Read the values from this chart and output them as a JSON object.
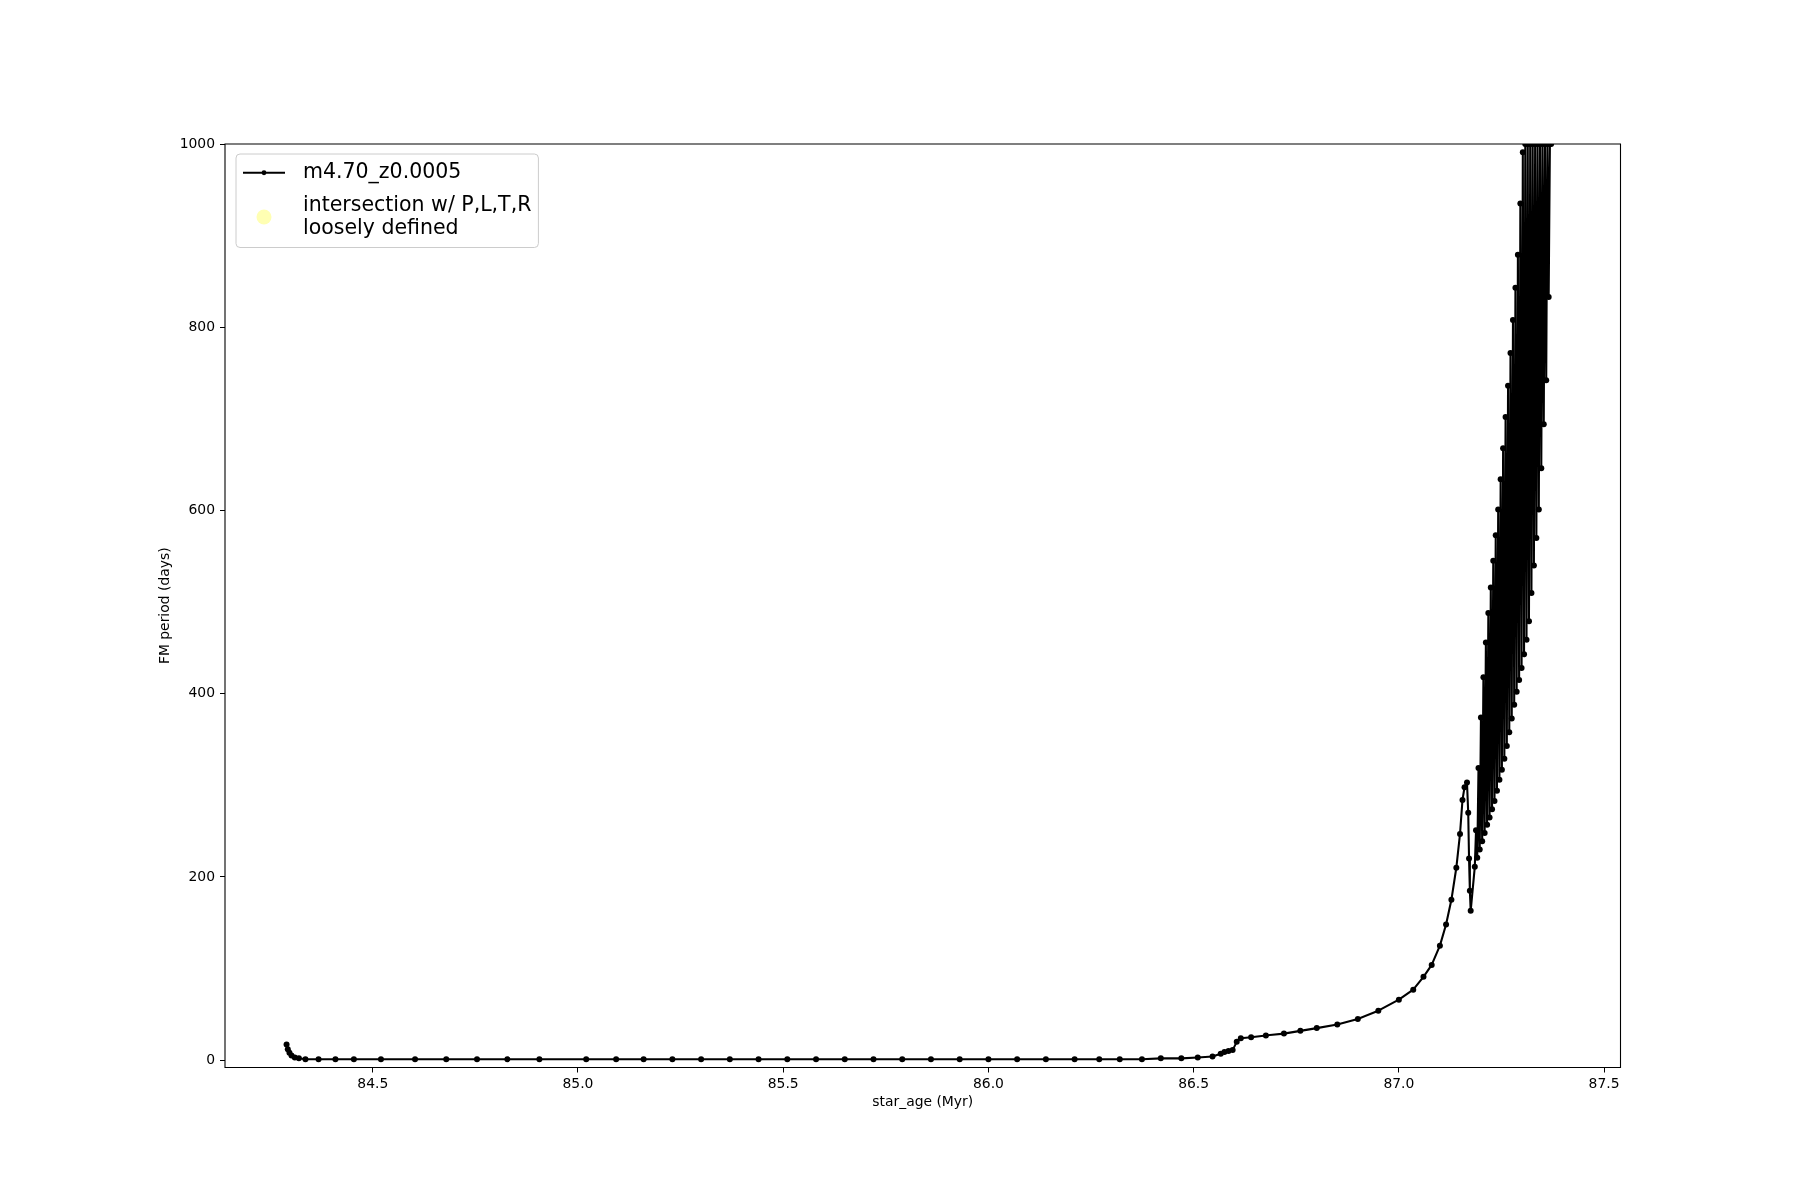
{
  "chart_data": {
    "type": "line",
    "xlabel": "star_age (Myr)",
    "ylabel": "FM period (days)",
    "xlim": [
      84.14,
      87.54
    ],
    "ylim": [
      -8,
      1000
    ],
    "xticks": [
      84.5,
      {
        "value": 85,
        "label": "85.0"
      },
      85.5,
      {
        "value": 86,
        "label": "86.0"
      },
      86.5,
      {
        "value": 87,
        "label": "87.0"
      },
      87.5
    ],
    "yticks": [
      0,
      200,
      400,
      600,
      800,
      1000
    ],
    "legend": "top left",
    "marker": "circle",
    "line_style": "solid",
    "series": [
      {
        "name": "m4.70_z0.0005",
        "color": "#000000",
        "x": [
          84.29,
          84.293,
          84.297,
          84.302,
          84.31,
          84.32,
          84.336,
          84.368,
          84.409,
          84.454,
          84.52,
          84.603,
          84.679,
          84.754,
          84.828,
          84.906,
          85.02,
          85.093,
          85.16,
          85.23,
          85.3,
          85.37,
          85.44,
          85.51,
          85.58,
          85.65,
          85.72,
          85.79,
          85.86,
          85.93,
          86.0,
          86.07,
          86.14,
          86.21,
          86.27,
          86.32,
          86.374,
          86.42,
          86.47,
          86.51,
          86.546,
          86.566,
          86.575,
          86.585,
          86.595,
          86.605,
          86.615,
          86.64,
          86.676,
          86.72,
          86.76,
          86.8,
          86.85,
          86.9,
          86.95,
          87.0,
          87.035,
          87.06,
          87.08,
          87.1,
          87.115,
          87.128,
          87.14,
          87.149,
          87.155,
          87.16,
          87.166,
          87.169,
          87.171,
          87.173,
          87.175,
          87.185,
          87.188,
          87.191,
          87.194,
          87.197,
          87.2,
          87.203,
          87.206,
          87.209,
          87.212,
          87.215,
          87.218,
          87.221,
          87.224,
          87.227,
          87.23,
          87.233,
          87.236,
          87.239,
          87.242,
          87.245,
          87.248,
          87.251,
          87.254,
          87.257,
          87.26,
          87.263,
          87.266,
          87.269,
          87.272,
          87.275,
          87.278,
          87.281,
          87.284,
          87.287,
          87.29,
          87.293,
          87.296,
          87.299,
          87.302,
          87.305,
          87.308,
          87.311,
          87.314,
          87.317,
          87.32,
          87.323,
          87.326,
          87.329,
          87.332,
          87.335,
          87.338,
          87.341,
          87.344,
          87.347,
          87.35,
          87.353,
          87.356,
          87.359,
          87.362,
          87.365,
          87.368,
          87.371
        ],
        "values": [
          17,
          12,
          8,
          5,
          3,
          2,
          1,
          1,
          1,
          1,
          1,
          1,
          1,
          1,
          1,
          1,
          1,
          1,
          1,
          1,
          1,
          1,
          1,
          1,
          1,
          1,
          1,
          1,
          1,
          1,
          1,
          1,
          1,
          1,
          1,
          1,
          1,
          2,
          2,
          3,
          4,
          7,
          9,
          10,
          11,
          20,
          24,
          25,
          27,
          29,
          32,
          35,
          39,
          45,
          54,
          66,
          77,
          91,
          104,
          125,
          148,
          175,
          210,
          247,
          284,
          298,
          303,
          270,
          220,
          185,
          163,
          211,
          251,
          221,
          319,
          230,
          374,
          239,
          418,
          248,
          456,
          257,
          488,
          265,
          516,
          274,
          545,
          283,
          573,
          294,
          601,
          306,
          634,
          317,
          668,
          329,
          702,
          343,
          736,
          358,
          772,
          373,
          808,
          388,
          843,
          402,
          879,
          415,
          935,
          428,
          991,
          443,
          1000,
          459,
          1000,
          479,
          1000,
          510,
          1000,
          540,
          1000,
          570,
          1000,
          601,
          1000,
          646,
          1000,
          694,
          1000,
          742,
          1000,
          833,
          1000,
          1000
        ]
      },
      {
        "name": "intersection w/ P,L,T,R\nloosely defined",
        "type": "scatter",
        "color": "#ffffb3"
      }
    ]
  }
}
